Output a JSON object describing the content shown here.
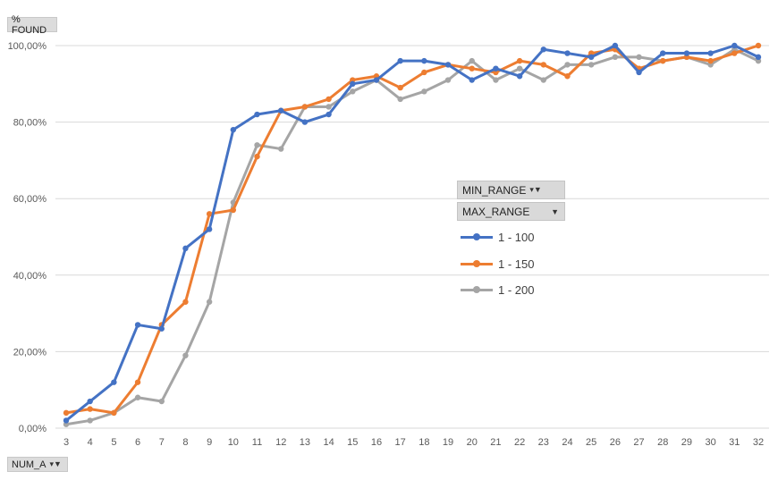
{
  "y_field_button": {
    "label": "% FOUND"
  },
  "x_field_button": {
    "label": "NUM_A",
    "icon": "filter-dropdown-icon"
  },
  "legend": {
    "filter_1": {
      "label": "MIN_RANGE",
      "icon": "filter-dropdown-icon"
    },
    "filter_2": {
      "label": "MAX_RANGE",
      "icon": "dropdown-arrow-icon"
    }
  },
  "colors": {
    "series_1": "#4472c4",
    "series_2": "#ed7d31",
    "series_3": "#a5a5a5",
    "grid": "#d9d9d9"
  },
  "chart_data": {
    "type": "line",
    "x": [
      3,
      4,
      5,
      6,
      7,
      8,
      9,
      10,
      11,
      12,
      13,
      14,
      15,
      16,
      17,
      18,
      19,
      20,
      21,
      22,
      23,
      24,
      25,
      26,
      27,
      28,
      29,
      30,
      31,
      32
    ],
    "ylim": [
      0,
      100
    ],
    "yticks": [
      "0,00%",
      "20,00%",
      "40,00%",
      "60,00%",
      "80,00%",
      "100,00%"
    ],
    "grid": true,
    "legend_position": "right",
    "series": [
      {
        "name": "1 - 100",
        "values": [
          2,
          7,
          12,
          27,
          26,
          47,
          52,
          78,
          82,
          83,
          80,
          82,
          90,
          91,
          96,
          96,
          95,
          91,
          94,
          92,
          99,
          98,
          97,
          100,
          93,
          98,
          98,
          98,
          100,
          97
        ]
      },
      {
        "name": "1 - 150",
        "values": [
          4,
          5,
          4,
          12,
          27,
          33,
          56,
          57,
          71,
          83,
          84,
          86,
          91,
          92,
          89,
          93,
          95,
          94,
          93,
          96,
          95,
          92,
          98,
          99,
          94,
          96,
          97,
          96,
          98,
          100
        ]
      },
      {
        "name": "1 - 200",
        "values": [
          1,
          2,
          4,
          8,
          7,
          19,
          33,
          59,
          74,
          73,
          84,
          84,
          88,
          91,
          86,
          88,
          91,
          96,
          91,
          94,
          91,
          95,
          95,
          97,
          97,
          96,
          97,
          95,
          99,
          96
        ]
      }
    ]
  }
}
